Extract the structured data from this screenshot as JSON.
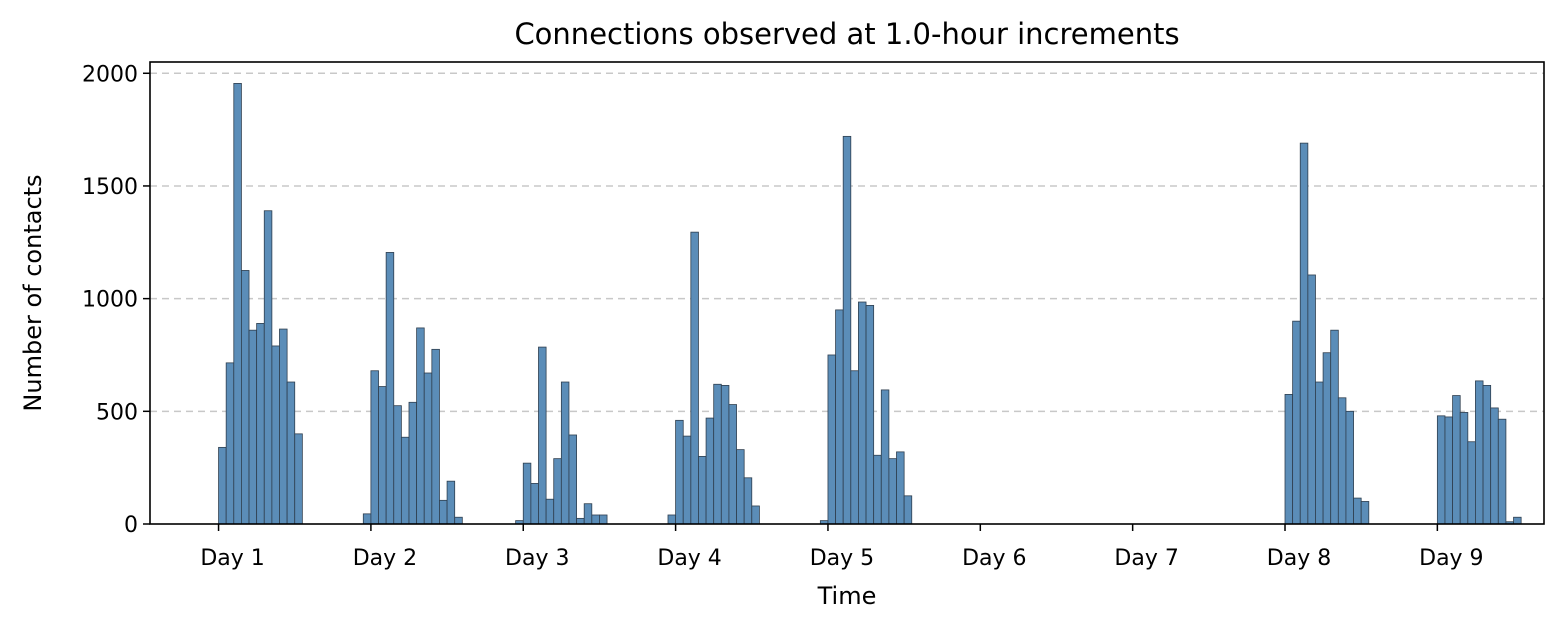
{
  "chart_data": {
    "type": "bar",
    "title": "Connections observed at 1.0-hour increments",
    "xlabel": "Time",
    "ylabel": "Number of contacts",
    "ylim": [
      0,
      2050
    ],
    "yticks": [
      0,
      500,
      1000,
      1500,
      2000
    ],
    "x_unit": "hours",
    "xlim": [
      -9.0,
      174.0
    ],
    "xticks": [
      {
        "label": "Day 1",
        "x": 0
      },
      {
        "label": "Day 2",
        "x": 20
      },
      {
        "label": "Day 3",
        "x": 40
      },
      {
        "label": "Day 4",
        "x": 60
      },
      {
        "label": "Day 5",
        "x": 80
      },
      {
        "label": "Day 6",
        "x": 100
      },
      {
        "label": "Day 7",
        "x": 120
      },
      {
        "label": "Day 8",
        "x": 140
      },
      {
        "label": "Day 9",
        "x": 160
      }
    ],
    "grid": "y-dashed",
    "bar_color": "#5b8db8",
    "edge_color": "#2f3f4f",
    "series": [
      {
        "day": "Day 1",
        "start": 0,
        "values": [
          340,
          715,
          1955,
          1125,
          860,
          890,
          1390,
          790,
          865,
          630,
          400
        ]
      },
      {
        "day": "Day 2",
        "start": 19,
        "values": [
          45,
          680,
          610,
          1205,
          525,
          385,
          540,
          870,
          670,
          775,
          105,
          190,
          30
        ]
      },
      {
        "day": "Day 3",
        "start": 39,
        "values": [
          15,
          270,
          180,
          785,
          110,
          290,
          630,
          395,
          25,
          90,
          40,
          40
        ]
      },
      {
        "day": "Day 4",
        "start": 59,
        "values": [
          40,
          460,
          390,
          1295,
          300,
          470,
          620,
          615,
          530,
          330,
          205,
          80
        ]
      },
      {
        "day": "Day 5",
        "start": 79,
        "values": [
          15,
          750,
          950,
          1720,
          680,
          985,
          970,
          305,
          595,
          290,
          320,
          125
        ]
      },
      {
        "day": "Day 8",
        "start": 140,
        "values": [
          575,
          900,
          1690,
          1105,
          630,
          760,
          860,
          560,
          500,
          115,
          100
        ]
      },
      {
        "day": "Day 9",
        "start": 160,
        "values": [
          480,
          475,
          570,
          495,
          365,
          635,
          615,
          515,
          465,
          10,
          30
        ]
      }
    ]
  }
}
